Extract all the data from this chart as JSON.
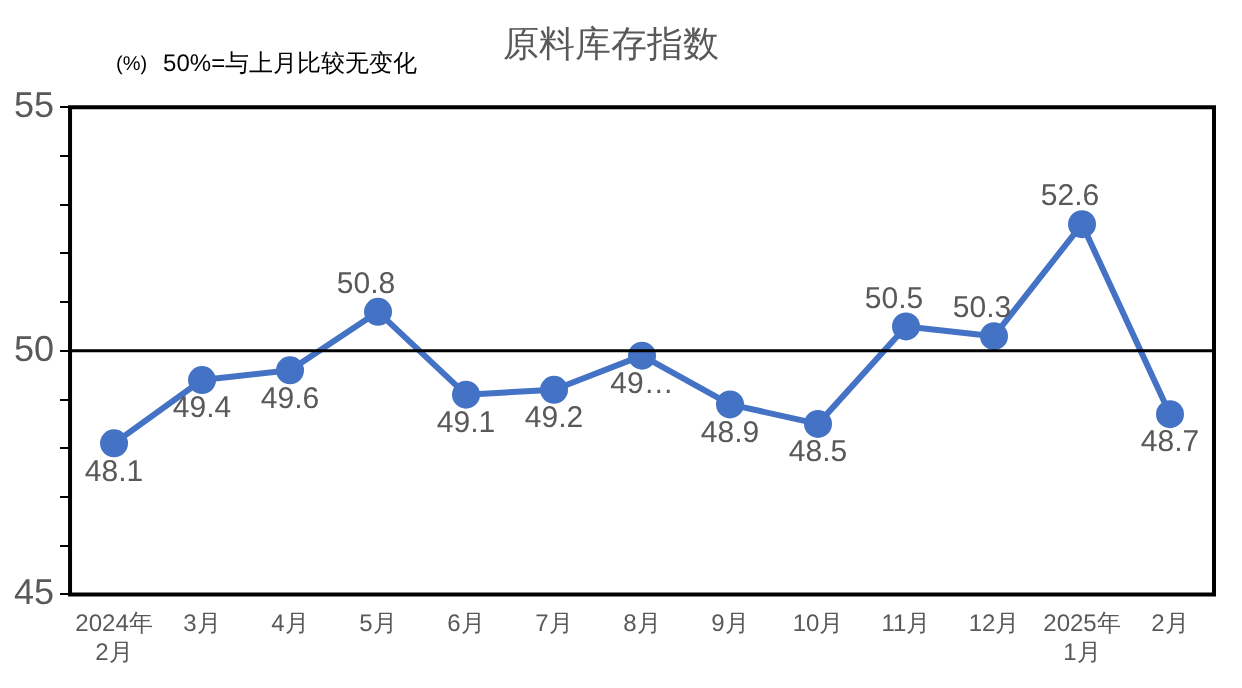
{
  "chart_data": {
    "type": "line",
    "title": "原料库存指数",
    "annotations": [
      "(%)",
      "50%=与上月比较无变化"
    ],
    "categories": [
      "2024年\n2月",
      "3月",
      "4月",
      "5月",
      "6月",
      "7月",
      "8月",
      "9月",
      "10月",
      "11月",
      "12月",
      "2025年\n1月",
      "2月"
    ],
    "series": [
      {
        "color": "#4472c4",
        "values": [
          48.1,
          49.4,
          49.6,
          50.8,
          49.1,
          49.2,
          49.9,
          48.9,
          48.5,
          50.5,
          50.3,
          52.6,
          48.7
        ],
        "value_labels": [
          "48.1",
          "49.4",
          "49.6",
          "50.8",
          "49.1",
          "49.2",
          "49…",
          "48.9",
          "48.5",
          "50.5",
          "50.3",
          "52.6",
          "48.7"
        ]
      }
    ],
    "ylim": [
      45,
      55
    ],
    "yticks": [
      45,
      {
        "value": 46,
        "label": null
      },
      {
        "value": 47,
        "label": null
      },
      {
        "value": 48,
        "label": null
      },
      {
        "value": 49,
        "label": null
      },
      50,
      {
        "value": 51,
        "label": null
      },
      {
        "value": 52,
        "label": null
      },
      {
        "value": 53,
        "label": null
      },
      {
        "value": 54,
        "label": null
      },
      55
    ],
    "ref_lines": [
      {
        "axis": "y",
        "value": 50,
        "color": "#000000"
      }
    ],
    "marker": "circle",
    "line_style": "solid",
    "legend": false
  }
}
